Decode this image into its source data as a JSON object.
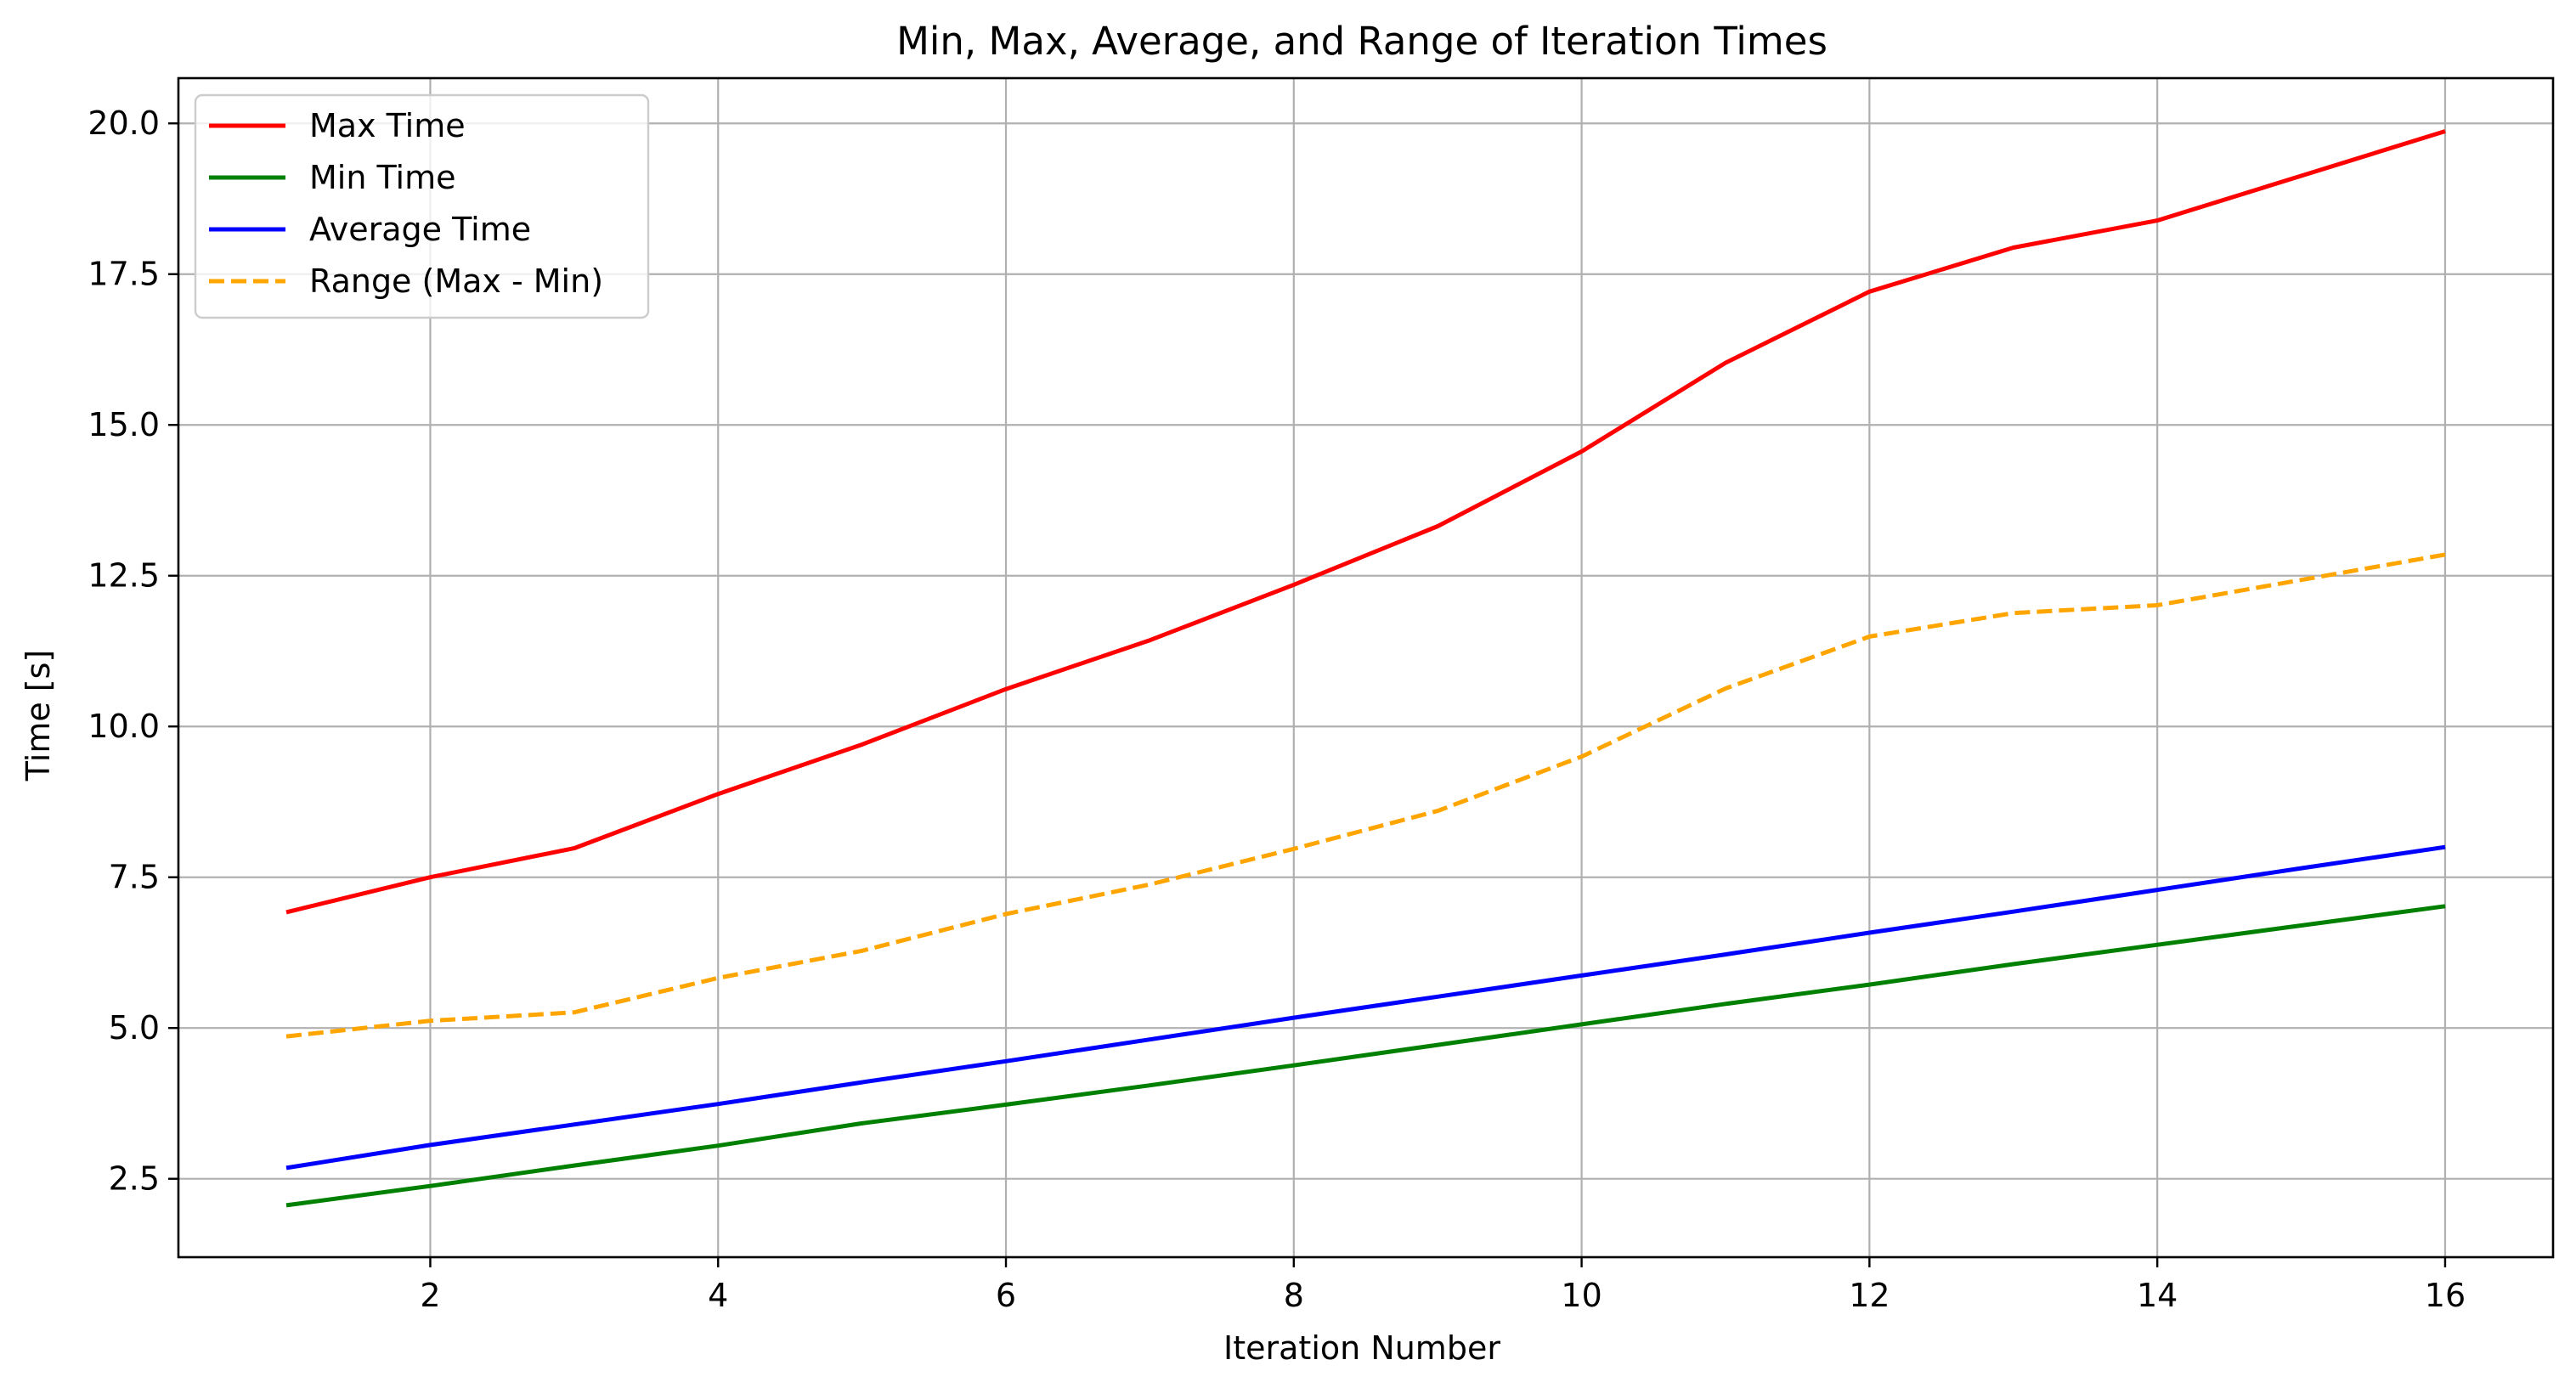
{
  "chart_data": {
    "type": "line",
    "title": "Min, Max, Average, and Range of Iteration Times",
    "xlabel": "Iteration Number",
    "ylabel": "Time [s]",
    "xlim": [
      0.25,
      16.75
    ],
    "ylim": [
      1.2,
      20.75
    ],
    "xticks": [
      2,
      4,
      6,
      8,
      10,
      12,
      14,
      16
    ],
    "yticks": [
      2.5,
      5.0,
      7.5,
      10.0,
      12.5,
      15.0,
      17.5,
      20.0
    ],
    "grid": true,
    "legend_position": "top-left",
    "x": [
      1,
      2,
      3,
      4,
      5,
      6,
      7,
      8,
      9,
      10,
      11,
      12,
      13,
      14,
      15,
      16
    ],
    "series": [
      {
        "name": "Max Time",
        "color": "#ff0000",
        "style": "solid",
        "values": [
          6.92,
          7.5,
          7.98,
          8.88,
          9.7,
          10.62,
          11.43,
          12.35,
          13.32,
          14.56,
          16.03,
          17.21,
          17.94,
          18.39,
          19.13,
          19.87
        ]
      },
      {
        "name": "Min Time",
        "color": "#008000",
        "style": "solid",
        "values": [
          2.06,
          2.38,
          2.72,
          3.05,
          3.42,
          3.73,
          4.05,
          4.38,
          4.72,
          5.06,
          5.4,
          5.72,
          6.06,
          6.38,
          6.7,
          7.02
        ]
      },
      {
        "name": "Average Time",
        "color": "#0000ff",
        "style": "solid",
        "values": [
          2.68,
          3.06,
          3.4,
          3.74,
          4.1,
          4.45,
          4.81,
          5.17,
          5.52,
          5.87,
          6.22,
          6.58,
          6.93,
          7.29,
          7.65,
          8.0
        ]
      },
      {
        "name": "Range (Max - Min)",
        "color": "#ffa500",
        "style": "dashed",
        "values": [
          4.86,
          5.12,
          5.26,
          5.83,
          6.28,
          6.89,
          7.38,
          7.97,
          8.6,
          9.5,
          10.63,
          11.49,
          11.88,
          12.01,
          12.43,
          12.85
        ]
      }
    ]
  }
}
